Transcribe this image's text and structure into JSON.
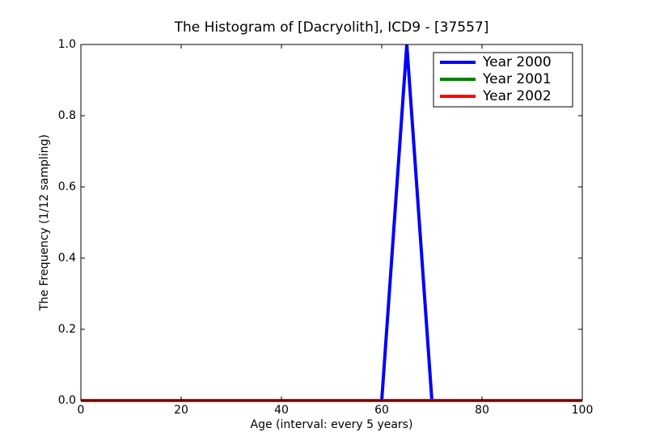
{
  "chart_data": {
    "type": "line",
    "title": "The Histogram of [Dacryolith], ICD9 - [37557]",
    "xlabel": "Age (interval: every 5 years)",
    "ylabel": "The Frequency (1/12 sampling)",
    "x": [
      0,
      5,
      10,
      15,
      20,
      25,
      30,
      35,
      40,
      45,
      50,
      55,
      60,
      65,
      70,
      75,
      80,
      85,
      90,
      95,
      100
    ],
    "series": [
      {
        "name": "Year 2000",
        "color": "#0000ff",
        "values": [
          0,
          0,
          0,
          0,
          0,
          0,
          0,
          0,
          0,
          0,
          0,
          0,
          0,
          1,
          0,
          0,
          0,
          0,
          0,
          0,
          0
        ]
      },
      {
        "name": "Year 2001",
        "color": "#008000",
        "values": [
          0,
          0,
          0,
          0,
          0,
          0,
          0,
          0,
          0,
          0,
          0,
          0,
          0,
          0,
          0,
          0,
          0,
          0,
          0,
          0,
          0
        ]
      },
      {
        "name": "Year 2002",
        "color": "#ff0000",
        "values": [
          0,
          0,
          0,
          0,
          0,
          0,
          0,
          0,
          0,
          0,
          0,
          0,
          0,
          0,
          0,
          0,
          0,
          0,
          0,
          0,
          0
        ]
      }
    ],
    "xlim": [
      0,
      100
    ],
    "xticks": [
      0,
      20,
      40,
      60,
      80,
      100
    ],
    "ylim": [
      0,
      1
    ],
    "yticks": [
      {
        "value": 0,
        "label": "0.0"
      },
      0.2,
      0.4,
      0.6,
      0.8,
      {
        "value": 1,
        "label": "1.0"
      }
    ],
    "grid": false,
    "legend": "upper right"
  }
}
